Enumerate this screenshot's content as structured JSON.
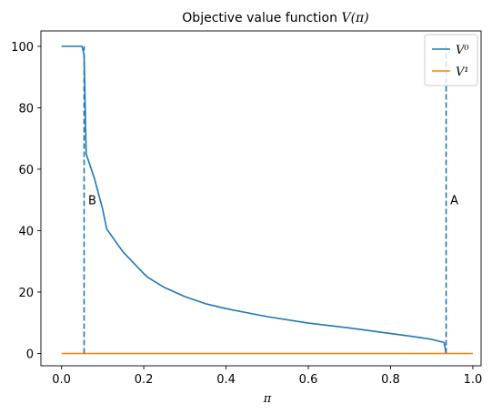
{
  "chart_data": {
    "type": "line",
    "title": "Objective value function V(π)",
    "xlabel": "π",
    "ylabel": "",
    "xlim": [
      -0.05,
      1.02
    ],
    "ylim": [
      -4,
      105
    ],
    "xticks": [
      0.0,
      0.2,
      0.4,
      0.6,
      0.8,
      1.0
    ],
    "xtick_labels": [
      "0.0",
      "0.2",
      "0.4",
      "0.6",
      "0.8",
      "1.0"
    ],
    "yticks": [
      0,
      20,
      40,
      60,
      80,
      100
    ],
    "ytick_labels": [
      "0",
      "20",
      "40",
      "60",
      "80",
      "100"
    ],
    "grid": false,
    "legend_position": "top-right",
    "series": [
      {
        "name": "V⁰",
        "color": "#1f77b4",
        "style": "solid",
        "x": [
          0.0,
          0.05,
          0.055,
          0.06,
          0.08,
          0.1,
          0.11,
          0.15,
          0.2,
          0.21,
          0.25,
          0.3,
          0.35,
          0.4,
          0.5,
          0.6,
          0.7,
          0.8,
          0.85,
          0.9,
          0.93,
          0.935
        ],
        "y": [
          100,
          100,
          97,
          65,
          57,
          47,
          40.5,
          33,
          26,
          24.8,
          21.5,
          18.5,
          16.2,
          14.6,
          12.0,
          9.9,
          8.3,
          6.5,
          5.6,
          4.6,
          3.6,
          0
        ]
      },
      {
        "name": "V¹",
        "color": "#ff7f0e",
        "style": "solid",
        "x": [
          0.0,
          1.0
        ],
        "y": [
          0,
          0
        ]
      }
    ],
    "vlines": [
      {
        "x": 0.055,
        "y0": 0,
        "y1": 100,
        "color": "#1f77b4",
        "style": "dashed"
      },
      {
        "x": 0.935,
        "y0": 0,
        "y1": 100,
        "color": "#1f77b4",
        "style": "dashed"
      }
    ],
    "annotations": [
      {
        "text": "B",
        "x": 0.065,
        "y": 50
      },
      {
        "text": "A",
        "x": 0.945,
        "y": 50
      }
    ]
  }
}
